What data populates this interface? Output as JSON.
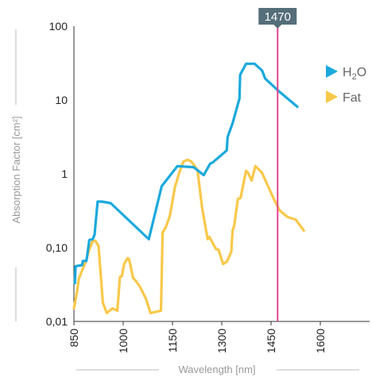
{
  "chart_data": {
    "type": "line",
    "title": "",
    "xlabel": "Wavelength [nm]",
    "ylabel": "Absorption Factor [cm²]",
    "xlim": [
      850,
      1750
    ],
    "ylim": [
      0.01,
      100
    ],
    "y_scale": "log",
    "grid": false,
    "legend_position": "top-right",
    "x_ticks": [
      {
        "value": 850,
        "label": "850"
      },
      {
        "value": 1000,
        "label": "1000"
      },
      {
        "value": 1150,
        "label": "1150"
      },
      {
        "value": 1300,
        "label": "1300"
      },
      {
        "value": 1450,
        "label": "1450"
      },
      {
        "value": 1600,
        "label": "1600"
      }
    ],
    "y_ticks": [
      {
        "value": 100,
        "label": "100"
      },
      {
        "value": 10,
        "label": "10"
      },
      {
        "value": 1,
        "label": "1"
      },
      {
        "value": 0.1,
        "label": "0,10"
      },
      {
        "value": 0.01,
        "label": "0,01"
      }
    ],
    "marker": {
      "x": 1470,
      "label": "1470",
      "color": "#e0468f",
      "label_bg": "#546e7a"
    },
    "series": [
      {
        "name": "H2O",
        "legend_main": "H",
        "legend_sub": "2",
        "legend_tail": "O",
        "color": "#1ba9dd",
        "x": [
          853,
          855,
          875,
          877,
          888,
          897,
          907,
          913,
          922,
          935,
          962,
          1078,
          1117,
          1165,
          1214,
          1245,
          1265,
          1273,
          1315,
          1318,
          1333,
          1354,
          1356,
          1374,
          1400,
          1423,
          1432,
          1450,
          1475,
          1530
        ],
        "y": [
          0.033,
          0.056,
          0.058,
          0.066,
          0.066,
          0.127,
          0.13,
          0.15,
          0.42,
          0.42,
          0.4,
          0.13,
          0.68,
          1.27,
          1.23,
          0.96,
          1.38,
          1.43,
          2.07,
          3.17,
          4.84,
          10.5,
          22.0,
          31.0,
          31.0,
          25.0,
          19.5,
          16.5,
          13.0,
          8.1
        ]
      },
      {
        "name": "Fat",
        "legend_main": "Fat",
        "color": "#f9c84a",
        "x": [
          850,
          860,
          865,
          875,
          887,
          898,
          907,
          915,
          925,
          938,
          950,
          967,
          982,
          990,
          996,
          1003,
          1013,
          1018,
          1030,
          1037,
          1050,
          1070,
          1083,
          1115,
          1120,
          1130,
          1142,
          1158,
          1163,
          1168,
          1173,
          1180,
          1183,
          1196,
          1207,
          1213,
          1226,
          1240,
          1257,
          1262,
          1283,
          1290,
          1304,
          1316,
          1329,
          1333,
          1338,
          1349,
          1357,
          1374,
          1380,
          1391,
          1402,
          1422,
          1458,
          1476,
          1500,
          1525,
          1550
        ],
        "y": [
          0.015,
          0.026,
          0.038,
          0.049,
          0.066,
          0.098,
          0.122,
          0.124,
          0.105,
          0.018,
          0.013,
          0.015,
          0.014,
          0.04,
          0.041,
          0.06,
          0.072,
          0.07,
          0.039,
          0.036,
          0.03,
          0.02,
          0.013,
          0.014,
          0.16,
          0.19,
          0.27,
          0.68,
          0.79,
          0.95,
          1.1,
          1.35,
          1.46,
          1.55,
          1.47,
          1.36,
          1.13,
          0.35,
          0.13,
          0.14,
          0.095,
          0.094,
          0.06,
          0.065,
          0.088,
          0.17,
          0.2,
          0.46,
          0.47,
          1.1,
          1.03,
          0.81,
          1.27,
          1.04,
          0.46,
          0.32,
          0.26,
          0.24,
          0.17
        ]
      }
    ]
  }
}
